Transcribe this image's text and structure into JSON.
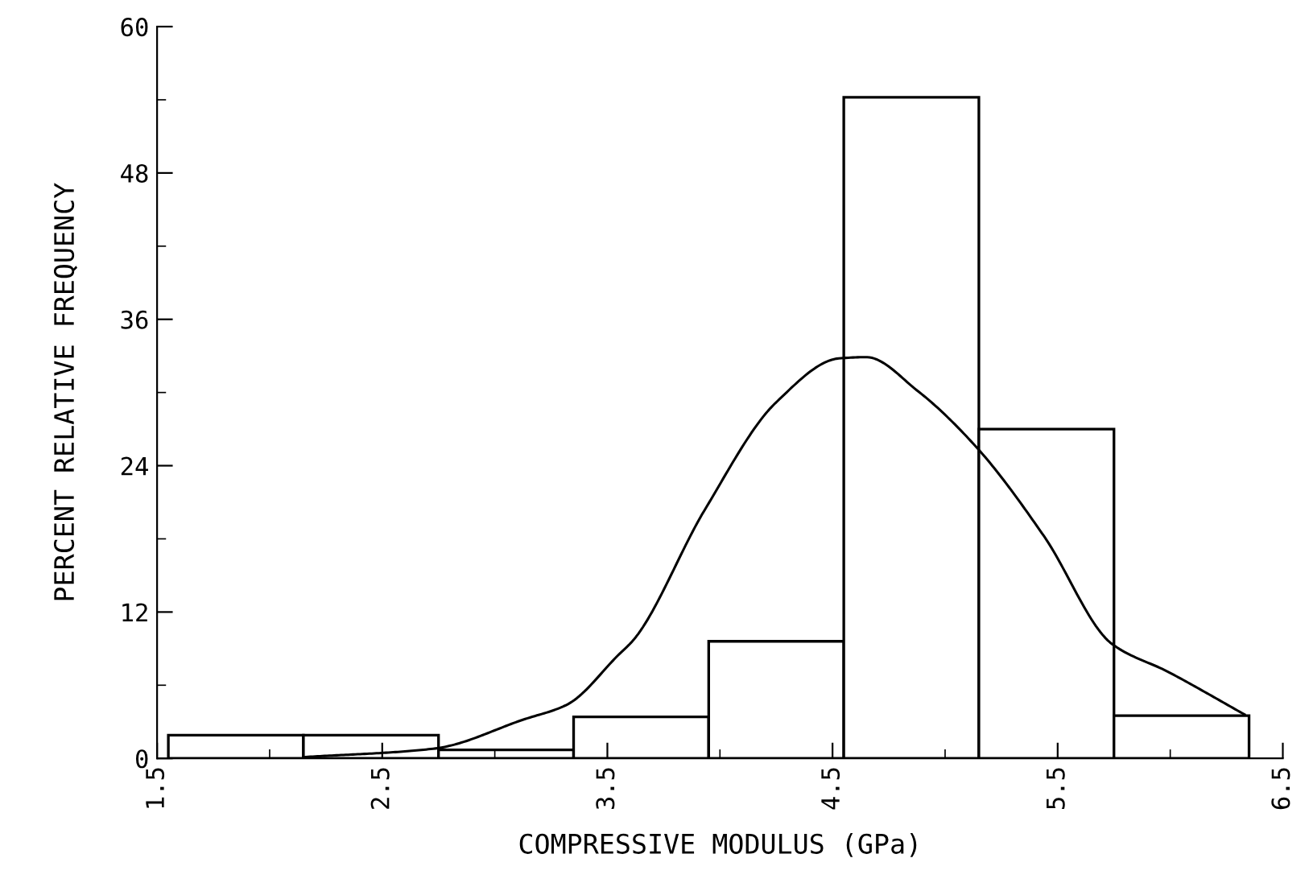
{
  "chart_data": {
    "type": "histogram",
    "xlabel": "COMPRESSIVE MODULUS (GPa)",
    "ylabel": "PERCENT RELATIVE FREQUENCY",
    "bins": [
      1.55,
      2.15,
      2.75,
      3.35,
      3.95,
      4.55,
      5.15,
      5.75,
      6.35
    ],
    "values": [
      1.9,
      1.9,
      0.7,
      3.4,
      9.6,
      54.2,
      27.0,
      3.5
    ],
    "color": "#000000",
    "series": [
      {
        "type": "line",
        "color": "#000000",
        "x": [
          2.15,
          2.73,
          3.13,
          3.32,
          3.55,
          3.62,
          3.93,
          4.25,
          4.53,
          4.65,
          4.88,
          5.14,
          5.44,
          5.74,
          5.99,
          6.33
        ],
        "values": [
          0.1,
          0.8,
          3.2,
          4.4,
          8.5,
          9.8,
          20.3,
          29.2,
          32.8,
          32.9,
          30.1,
          25.5,
          18.2,
          9.4,
          7.1,
          3.6
        ]
      }
    ],
    "xlim": [
      1.5,
      6.5
    ],
    "ylim": [
      0,
      60
    ],
    "xticks": [
      1.5,
      {
        "value": 2.0,
        "label": null
      },
      2.5,
      {
        "value": 3.0,
        "label": null
      },
      3.5,
      {
        "value": 4.0,
        "label": null
      },
      4.5,
      {
        "value": 5.0,
        "label": null
      },
      5.5,
      {
        "value": 6.0,
        "label": null
      },
      6.5
    ],
    "yticks": [
      0,
      {
        "value": 6,
        "label": null
      },
      12,
      {
        "value": 18,
        "label": null
      },
      24,
      {
        "value": 30,
        "label": null
      },
      36,
      {
        "value": 42,
        "label": null
      },
      48,
      {
        "value": 54,
        "label": null
      },
      60
    ],
    "grid": false,
    "legend": false
  }
}
